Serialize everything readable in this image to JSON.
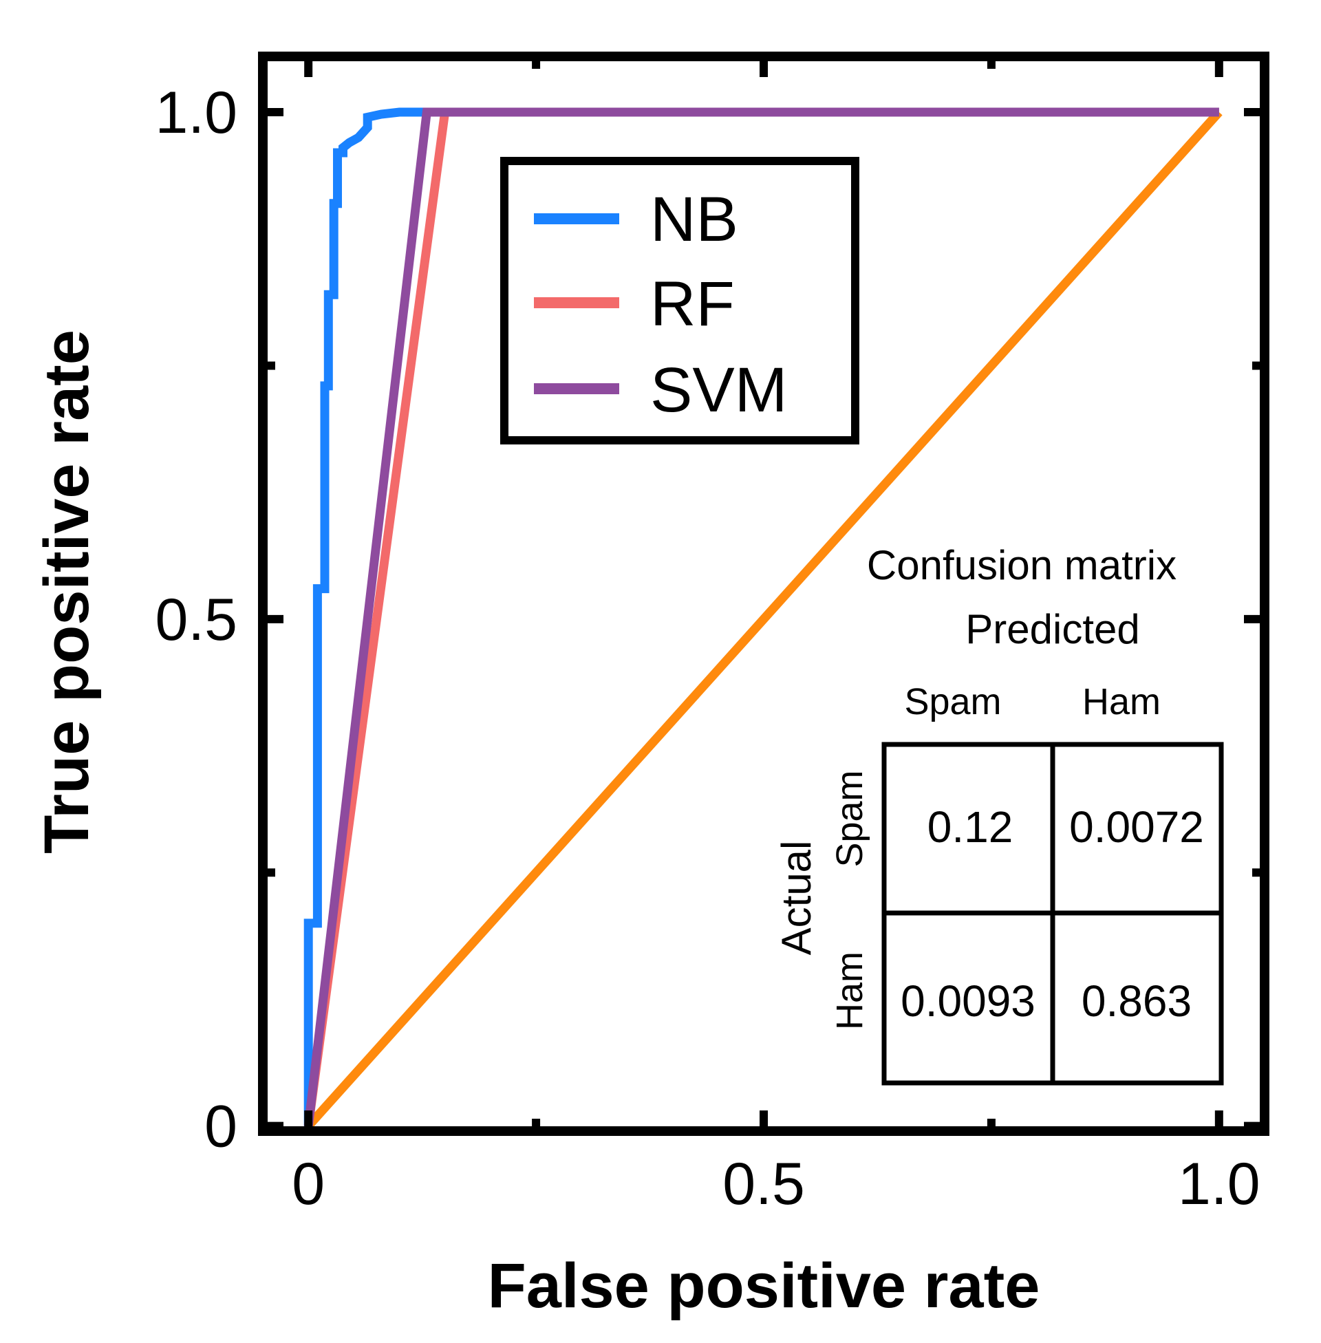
{
  "chart_data": {
    "type": "line",
    "xlabel": "False positive rate",
    "ylabel": "True positive rate",
    "xlim": [
      -0.05,
      1.05
    ],
    "ylim": [
      -0.005,
      1.055
    ],
    "x_ticks": [
      {
        "value": 0,
        "label": "0"
      },
      {
        "value": 0.5,
        "label": "0.5"
      },
      {
        "value": 1.0,
        "label": "1.0"
      }
    ],
    "y_ticks": [
      {
        "value": 0,
        "label": "0"
      },
      {
        "value": 0.5,
        "label": "0.5"
      },
      {
        "value": 1.0,
        "label": "1.0"
      }
    ],
    "minor_ticks": [
      0.25,
      0.75
    ],
    "legend_position": "top-center",
    "series": [
      {
        "name": "NB",
        "color": "#1a82ff",
        "x": [
          0,
          0,
          0.005,
          0.005,
          0.01,
          0.01,
          0.012,
          0.012,
          0.018,
          0.018,
          0.022,
          0.022,
          0.028,
          0.028,
          0.032,
          0.032,
          0.038,
          0.038,
          0.045,
          0.055,
          0.065,
          0.065,
          0.08,
          0.1,
          0.12,
          1.0
        ],
        "y": [
          0,
          0.2,
          0.2,
          0.2,
          0.2,
          0.53,
          0.53,
          0.53,
          0.53,
          0.73,
          0.73,
          0.82,
          0.82,
          0.91,
          0.91,
          0.96,
          0.96,
          0.965,
          0.97,
          0.975,
          0.985,
          0.995,
          0.998,
          1.0,
          1.0,
          1.0
        ]
      },
      {
        "name": "RF",
        "color": "#f36a6a",
        "x": [
          0,
          0.15,
          1.0
        ],
        "y": [
          0,
          1.0,
          1.0
        ]
      },
      {
        "name": "SVM",
        "color": "#8e4b9e",
        "x": [
          0,
          0.13,
          1.0
        ],
        "y": [
          0,
          1.0,
          1.0
        ]
      },
      {
        "color": "#ff8a0d",
        "x": [
          0,
          1.0
        ],
        "y": [
          0,
          1.0
        ]
      }
    ]
  },
  "confusion_matrix": {
    "title": "Confusion matrix",
    "predicted_label": "Predicted",
    "actual_label": "Actual",
    "col_labels": [
      "Spam",
      "Ham"
    ],
    "row_labels": [
      "Spam",
      "Ham"
    ],
    "cells": [
      [
        "0.12",
        "0.0072"
      ],
      [
        "0.0093",
        "0.863"
      ]
    ]
  }
}
